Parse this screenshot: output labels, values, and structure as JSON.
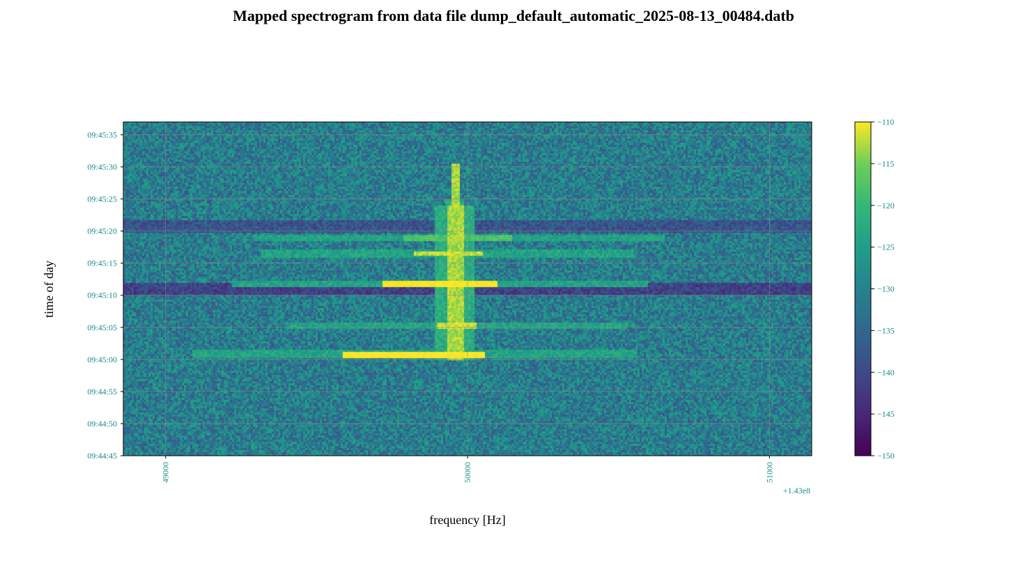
{
  "chart_data": {
    "type": "heatmap",
    "title": "Mapped spectrogram from data file dump_default_automatic_2025-08-13_00484.datb",
    "xlabel": "frequency [Hz]",
    "ylabel": "time of day",
    "x_offset_label": "+1.43e8",
    "xlim": [
      48860,
      51140
    ],
    "x_ticks": [
      {
        "value": 49000,
        "label": "49000"
      },
      {
        "value": 50000,
        "label": "50000"
      },
      {
        "value": 51000,
        "label": "51000"
      }
    ],
    "ylim_seconds_of_day": [
      35085,
      35137
    ],
    "y_ticks": [
      {
        "value": 35085,
        "label": "09:44:45"
      },
      {
        "value": 35090,
        "label": "09:44:50"
      },
      {
        "value": 35095,
        "label": "09:44:55"
      },
      {
        "value": 35100,
        "label": "09:45:00"
      },
      {
        "value": 35105,
        "label": "09:45:05"
      },
      {
        "value": 35110,
        "label": "09:45:10"
      },
      {
        "value": 35115,
        "label": "09:45:15"
      },
      {
        "value": 35120,
        "label": "09:45:20"
      },
      {
        "value": 35125,
        "label": "09:45:25"
      },
      {
        "value": 35130,
        "label": "09:45:30"
      },
      {
        "value": 35135,
        "label": "09:45:35"
      }
    ],
    "colorbar": {
      "colormap": "viridis",
      "range": [
        -150,
        -110
      ],
      "ticks": [
        {
          "value": -110,
          "label": "−110"
        },
        {
          "value": -115,
          "label": "−115"
        },
        {
          "value": -120,
          "label": "−120"
        },
        {
          "value": -125,
          "label": "−125"
        },
        {
          "value": -130,
          "label": "−130"
        },
        {
          "value": -135,
          "label": "−135"
        },
        {
          "value": -140,
          "label": "−140"
        },
        {
          "value": -145,
          "label": "−145"
        },
        {
          "value": -150,
          "label": "−150"
        }
      ]
    },
    "grid": true,
    "background_level": -131,
    "signal_center_freq": 49960,
    "bright_lines": [
      {
        "time": 35100.8,
        "level": -111,
        "freq_from": 49590,
        "freq_to": 50060
      },
      {
        "time": 35111.8,
        "level": -111,
        "freq_from": 49720,
        "freq_to": 50100
      },
      {
        "time": 35116.5,
        "level": -114,
        "freq_from": 49820,
        "freq_to": 50050
      },
      {
        "time": 35119.0,
        "level": -120,
        "freq_from": 49790,
        "freq_to": 50150
      },
      {
        "time": 35105.2,
        "level": -114,
        "freq_from": 49900,
        "freq_to": 50030
      }
    ],
    "dark_bands": [
      {
        "time": 35111.0,
        "level": -141
      },
      {
        "time": 35120.8,
        "level": -138
      }
    ],
    "tick_color": "#1a8a8a"
  }
}
